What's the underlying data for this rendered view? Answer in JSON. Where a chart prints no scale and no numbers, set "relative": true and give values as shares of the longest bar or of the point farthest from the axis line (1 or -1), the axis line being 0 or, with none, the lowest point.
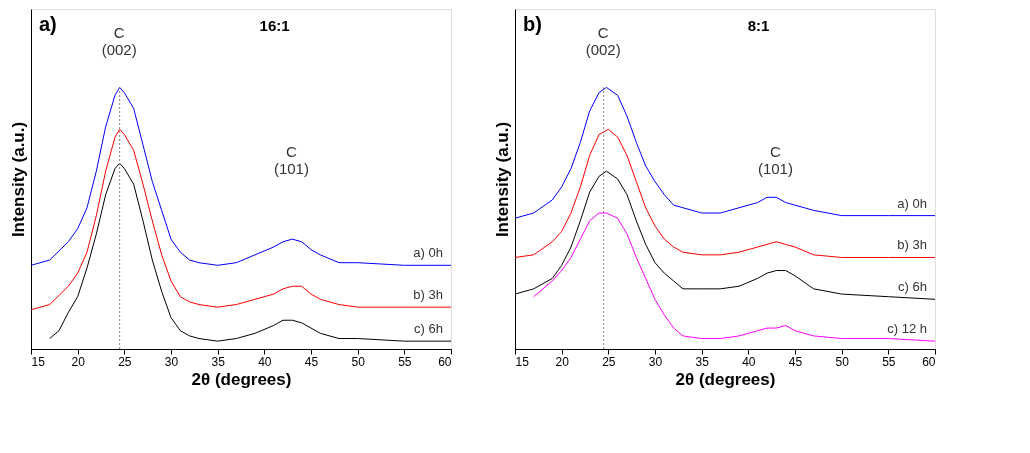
{
  "chart_data": [
    {
      "type": "line",
      "title": "16:1",
      "relative": true,
      "xlabel": "2θ (degrees)",
      "ylabel": "Intensity (a.u.)",
      "xlim": [
        15,
        60
      ],
      "xticks": [
        15,
        20,
        25,
        30,
        35,
        40,
        45,
        50,
        55,
        60
      ],
      "tick_labels": "x",
      "grid": false,
      "marker": "none",
      "line_style": "solid",
      "annotations": [
        "a)",
        "C\n(002)",
        "C\n(101)"
      ],
      "ref_lines": [
        {
          "axis": "x",
          "value": 24.5,
          "color": "#808080",
          "line_style": "dotted"
        }
      ],
      "series": [
        {
          "name": "a) 0h",
          "color": "#0000ff",
          "x": [
            15,
            17,
            19,
            20,
            21,
            22,
            23,
            24,
            24.5,
            25,
            26,
            27,
            28,
            29,
            30,
            31,
            32,
            33,
            35,
            37,
            39,
            41,
            42,
            43,
            44,
            45,
            46,
            48,
            50,
            55,
            60
          ],
          "values": [
            0.32,
            0.34,
            0.41,
            0.46,
            0.54,
            0.68,
            0.85,
            0.97,
            1.0,
            0.98,
            0.92,
            0.78,
            0.64,
            0.53,
            0.42,
            0.37,
            0.34,
            0.33,
            0.32,
            0.33,
            0.36,
            0.39,
            0.41,
            0.42,
            0.41,
            0.38,
            0.36,
            0.33,
            0.33,
            0.32,
            0.32
          ]
        },
        {
          "name": "b) 3h",
          "color": "#ff0000",
          "x": [
            15,
            17,
            19,
            20,
            21,
            22,
            23,
            24,
            24.5,
            25,
            26,
            27,
            28,
            29,
            30,
            31,
            32,
            33,
            35,
            37,
            39,
            41,
            42,
            43,
            44,
            45,
            46,
            48,
            50,
            55,
            60
          ],
          "values": [
            0.15,
            0.17,
            0.24,
            0.29,
            0.37,
            0.51,
            0.68,
            0.81,
            0.84,
            0.82,
            0.76,
            0.63,
            0.49,
            0.36,
            0.26,
            0.2,
            0.18,
            0.17,
            0.16,
            0.17,
            0.19,
            0.21,
            0.23,
            0.24,
            0.24,
            0.21,
            0.19,
            0.17,
            0.16,
            0.16,
            0.16
          ]
        },
        {
          "name": "c) 6h",
          "color": "#000000",
          "x": [
            17,
            18,
            19,
            20,
            21,
            22,
            23,
            24,
            24.5,
            25,
            26,
            27,
            28,
            29,
            30,
            31,
            32,
            33,
            35,
            37,
            39,
            41,
            42,
            43,
            44,
            45,
            46,
            48,
            50,
            55,
            60
          ],
          "values": [
            0.04,
            0.07,
            0.14,
            0.2,
            0.31,
            0.44,
            0.59,
            0.69,
            0.71,
            0.69,
            0.63,
            0.49,
            0.34,
            0.22,
            0.12,
            0.07,
            0.05,
            0.04,
            0.03,
            0.04,
            0.06,
            0.09,
            0.11,
            0.11,
            0.1,
            0.08,
            0.06,
            0.04,
            0.04,
            0.03,
            0.03
          ]
        }
      ]
    },
    {
      "type": "line",
      "title": "8:1",
      "relative": true,
      "xlabel": "2θ (degrees)",
      "ylabel": "Intensity (a.u.)",
      "xlim": [
        15,
        60
      ],
      "xticks": [
        15,
        20,
        25,
        30,
        35,
        40,
        45,
        50,
        55,
        60
      ],
      "tick_labels": "x",
      "grid": false,
      "marker": "none",
      "line_style": "solid",
      "annotations": [
        "b)",
        "C\n(002)",
        "C\n(101)"
      ],
      "ref_lines": [
        {
          "axis": "x",
          "value": 24.5,
          "color": "#808080",
          "line_style": "dotted"
        }
      ],
      "series": [
        {
          "name": "a) 0h",
          "color": "#0000ff",
          "x": [
            15,
            17,
            19,
            20,
            21,
            22,
            23,
            24,
            24.8,
            26,
            27,
            28,
            29,
            30,
            31,
            32,
            33,
            35,
            37,
            39,
            41,
            42,
            43,
            44,
            45,
            47,
            50,
            55,
            60
          ],
          "values": [
            0.5,
            0.52,
            0.57,
            0.62,
            0.69,
            0.79,
            0.91,
            0.98,
            1.0,
            0.97,
            0.89,
            0.79,
            0.7,
            0.64,
            0.59,
            0.55,
            0.54,
            0.52,
            0.52,
            0.54,
            0.56,
            0.58,
            0.58,
            0.56,
            0.55,
            0.53,
            0.51,
            0.51,
            0.51
          ]
        },
        {
          "name": "b) 3h",
          "color": "#ff0000",
          "x": [
            15,
            17,
            19,
            20,
            21,
            22,
            23,
            24,
            25,
            26,
            27,
            28,
            29,
            30,
            31,
            32,
            33,
            35,
            37,
            39,
            41,
            42,
            43,
            44,
            45,
            47,
            50,
            55,
            60
          ],
          "values": [
            0.35,
            0.36,
            0.41,
            0.45,
            0.52,
            0.62,
            0.74,
            0.82,
            0.84,
            0.81,
            0.74,
            0.64,
            0.54,
            0.47,
            0.42,
            0.39,
            0.37,
            0.36,
            0.36,
            0.37,
            0.39,
            0.4,
            0.41,
            0.4,
            0.39,
            0.36,
            0.35,
            0.35,
            0.35
          ]
        },
        {
          "name": "c) 6h",
          "color": "#000000",
          "x": [
            15,
            17,
            19,
            20,
            21,
            22,
            23,
            24,
            24.8,
            26,
            27,
            28,
            29,
            30,
            31,
            32,
            33,
            35,
            37,
            39,
            41,
            42,
            43,
            44,
            45,
            47,
            50,
            55,
            60
          ],
          "values": [
            0.21,
            0.23,
            0.27,
            0.32,
            0.39,
            0.49,
            0.6,
            0.66,
            0.68,
            0.65,
            0.59,
            0.49,
            0.4,
            0.33,
            0.29,
            0.26,
            0.23,
            0.23,
            0.23,
            0.24,
            0.27,
            0.29,
            0.3,
            0.3,
            0.28,
            0.23,
            0.21,
            0.2,
            0.19
          ]
        },
        {
          "name": "c) 12 h",
          "color": "#ff00ff",
          "x": [
            17,
            18,
            19,
            20,
            21,
            22,
            23,
            24,
            24.8,
            26,
            27,
            28,
            29,
            30,
            31,
            32,
            33,
            35,
            37,
            39,
            41,
            42,
            43,
            44,
            45,
            47,
            50,
            55,
            60
          ],
          "values": [
            0.2,
            0.23,
            0.26,
            0.3,
            0.35,
            0.42,
            0.49,
            0.52,
            0.52,
            0.5,
            0.44,
            0.35,
            0.27,
            0.19,
            0.13,
            0.08,
            0.05,
            0.04,
            0.04,
            0.05,
            0.07,
            0.08,
            0.08,
            0.09,
            0.07,
            0.05,
            0.04,
            0.04,
            0.03
          ]
        }
      ]
    }
  ]
}
